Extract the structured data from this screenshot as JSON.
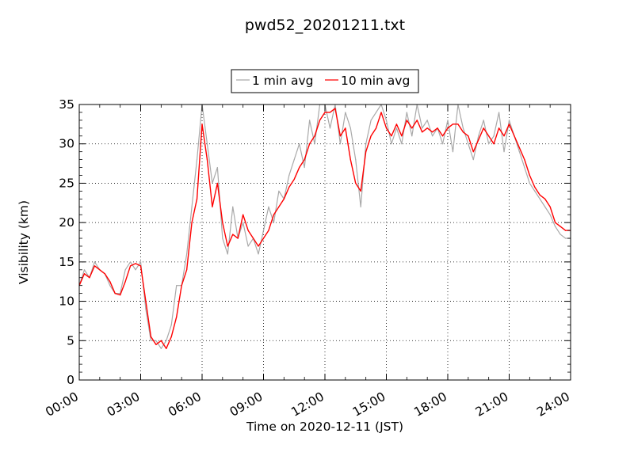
{
  "chart_data": {
    "type": "line",
    "title": "pwd52_20201211.txt",
    "xlabel": "Time on 2020-12-11 (JST)",
    "ylabel": "Visibility (km)",
    "xlim": [
      "00:00",
      "24:00"
    ],
    "ylim": [
      0,
      35
    ],
    "x_ticks": [
      "00:00",
      "03:00",
      "06:00",
      "09:00",
      "12:00",
      "15:00",
      "18:00",
      "21:00",
      "24:00"
    ],
    "y_ticks": [
      "0",
      "5",
      "10",
      "15",
      "20",
      "25",
      "30",
      "35"
    ],
    "grid": true,
    "legend_position": "top-center",
    "series": [
      {
        "name": "1 min avg",
        "color": "#a9a9a9",
        "x": [
          "00:00",
          "00:15",
          "00:30",
          "00:45",
          "01:00",
          "01:15",
          "01:30",
          "01:45",
          "02:00",
          "02:15",
          "02:30",
          "02:45",
          "03:00",
          "03:15",
          "03:30",
          "03:45",
          "04:00",
          "04:15",
          "04:30",
          "04:45",
          "05:00",
          "05:15",
          "05:30",
          "05:45",
          "06:00",
          "06:15",
          "06:30",
          "06:45",
          "07:00",
          "07:15",
          "07:30",
          "07:45",
          "08:00",
          "08:15",
          "08:30",
          "08:45",
          "09:00",
          "09:15",
          "09:30",
          "09:45",
          "10:00",
          "10:15",
          "10:30",
          "10:45",
          "11:00",
          "11:15",
          "11:30",
          "11:45",
          "12:00",
          "12:15",
          "12:30",
          "12:45",
          "13:00",
          "13:15",
          "13:30",
          "13:45",
          "14:00",
          "14:15",
          "14:30",
          "14:45",
          "15:00",
          "15:15",
          "15:30",
          "15:45",
          "16:00",
          "16:15",
          "16:30",
          "16:45",
          "17:00",
          "17:15",
          "17:30",
          "17:45",
          "18:00",
          "18:15",
          "18:30",
          "18:45",
          "19:00",
          "19:15",
          "19:30",
          "19:45",
          "20:00",
          "20:15",
          "20:30",
          "20:45",
          "21:00",
          "21:15",
          "21:30",
          "21:45",
          "22:00",
          "22:15",
          "22:30",
          "22:45",
          "23:00",
          "23:15",
          "23:30",
          "23:45",
          "24:00"
        ],
        "values": [
          12,
          14,
          13,
          15,
          14,
          13.5,
          12,
          11,
          11,
          14,
          15,
          14,
          15,
          9,
          5,
          5,
          4,
          5,
          7,
          12,
          12,
          16,
          22,
          28,
          35,
          30,
          25,
          27,
          18,
          16,
          22,
          18,
          20,
          17,
          18,
          16,
          19,
          22,
          20,
          24,
          23,
          26,
          28,
          30,
          27,
          33,
          30,
          35,
          35,
          32,
          35,
          30,
          34,
          32,
          28,
          22,
          30,
          33,
          34,
          35,
          33,
          30,
          32,
          30,
          34,
          31,
          35,
          32,
          33,
          31,
          32,
          30,
          33,
          29,
          35,
          32,
          30,
          28,
          31,
          33,
          30,
          31,
          34,
          29,
          33,
          31,
          29,
          27,
          25,
          24,
          23,
          22,
          21,
          19.5,
          18.5,
          18,
          18
        ]
      },
      {
        "name": "10 min avg",
        "color": "#ff0000",
        "x": [
          "00:00",
          "00:15",
          "00:30",
          "00:45",
          "01:00",
          "01:15",
          "01:30",
          "01:45",
          "02:00",
          "02:15",
          "02:30",
          "02:45",
          "03:00",
          "03:15",
          "03:30",
          "03:45",
          "04:00",
          "04:15",
          "04:30",
          "04:45",
          "05:00",
          "05:15",
          "05:30",
          "05:45",
          "06:00",
          "06:15",
          "06:30",
          "06:45",
          "07:00",
          "07:15",
          "07:30",
          "07:45",
          "08:00",
          "08:15",
          "08:30",
          "08:45",
          "09:00",
          "09:15",
          "09:30",
          "09:45",
          "10:00",
          "10:15",
          "10:30",
          "10:45",
          "11:00",
          "11:15",
          "11:30",
          "11:45",
          "12:00",
          "12:15",
          "12:30",
          "12:45",
          "13:00",
          "13:15",
          "13:30",
          "13:45",
          "14:00",
          "14:15",
          "14:30",
          "14:45",
          "15:00",
          "15:15",
          "15:30",
          "15:45",
          "16:00",
          "16:15",
          "16:30",
          "16:45",
          "17:00",
          "17:15",
          "17:30",
          "17:45",
          "18:00",
          "18:15",
          "18:30",
          "18:45",
          "19:00",
          "19:15",
          "19:30",
          "19:45",
          "20:00",
          "20:15",
          "20:30",
          "20:45",
          "21:00",
          "21:15",
          "21:30",
          "21:45",
          "22:00",
          "22:15",
          "22:30",
          "22:45",
          "23:00",
          "23:15",
          "23:30",
          "23:45",
          "24:00"
        ],
        "values": [
          12,
          13.5,
          13,
          14.5,
          14,
          13.5,
          12.5,
          11,
          10.8,
          12.5,
          14.5,
          14.8,
          14.5,
          10,
          5.5,
          4.5,
          5,
          4,
          5.5,
          8,
          12,
          14,
          20,
          23,
          32.5,
          28,
          22,
          25,
          20,
          17,
          18.5,
          18,
          21,
          19,
          18,
          17,
          18,
          19,
          21,
          22,
          23,
          24.5,
          25.5,
          27,
          28,
          30,
          31,
          33,
          34,
          34,
          34.5,
          31,
          32,
          28,
          25,
          24,
          29,
          31,
          32,
          34,
          32,
          31,
          32.5,
          31,
          33,
          32,
          33,
          31.5,
          32,
          31.5,
          32,
          31,
          32,
          32.5,
          32.5,
          31.5,
          31,
          29,
          30.5,
          32,
          31,
          30,
          32,
          31,
          32.5,
          31,
          29.5,
          28,
          26,
          24.5,
          23.5,
          23,
          22,
          20,
          19.5,
          19,
          19
        ]
      }
    ]
  }
}
